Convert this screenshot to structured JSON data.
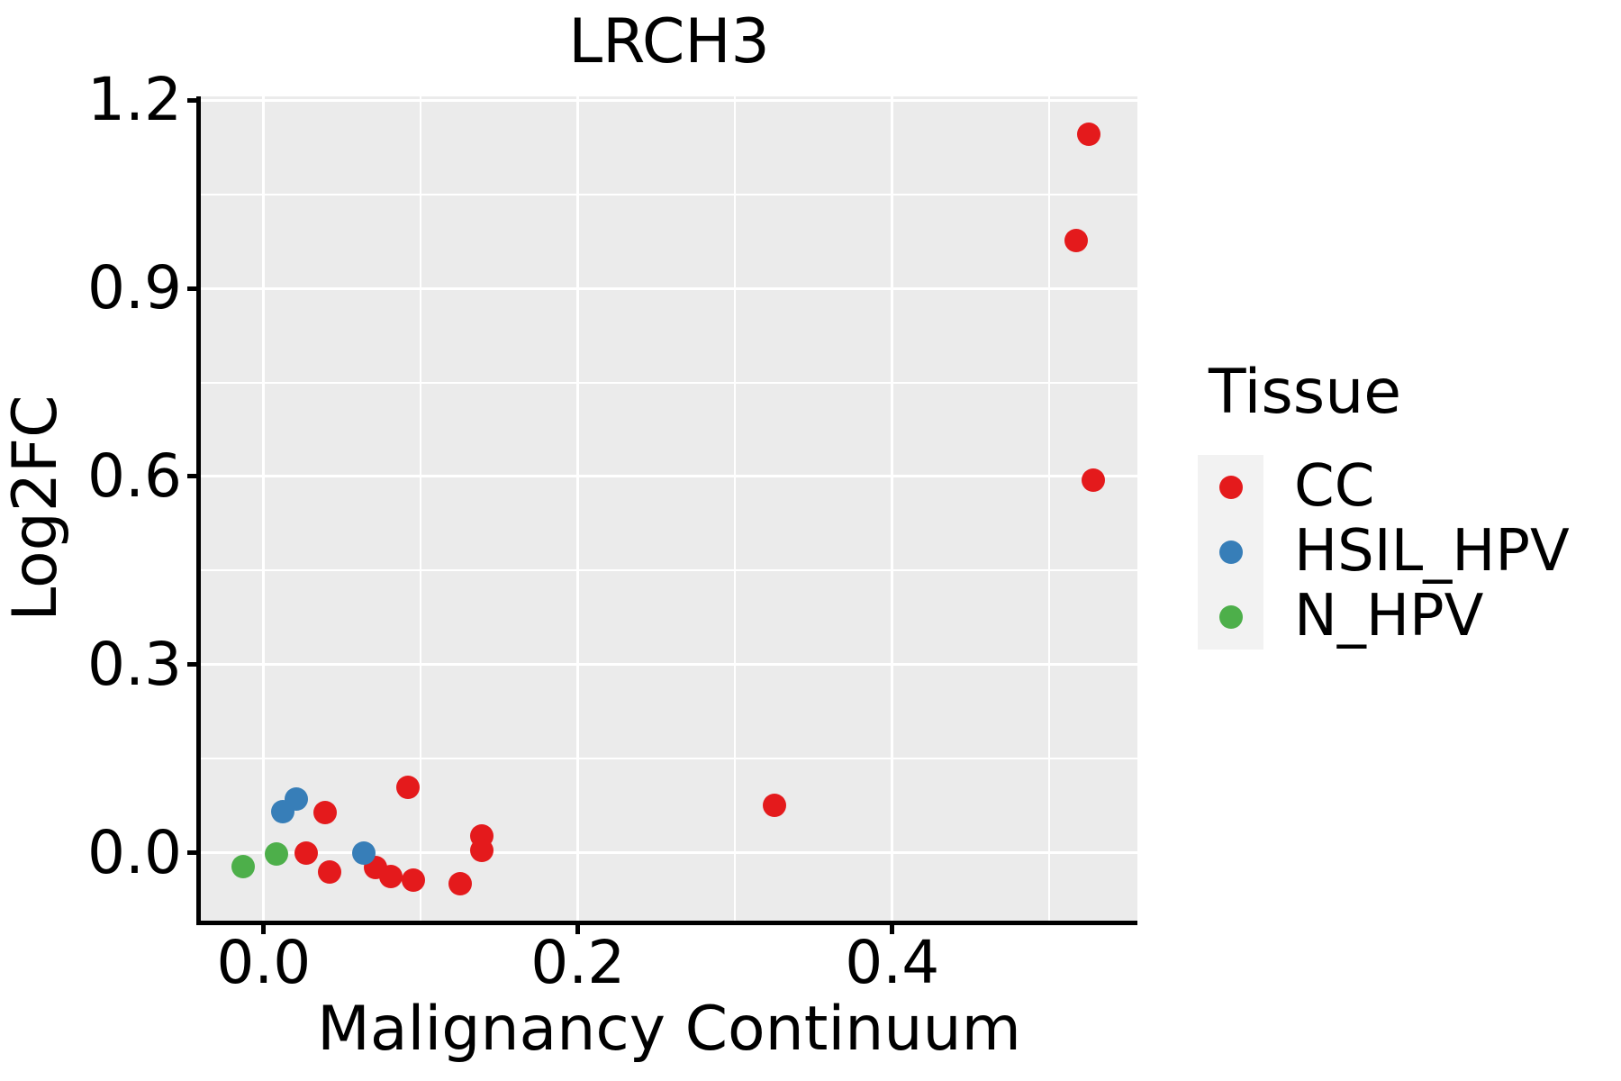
{
  "title": "LRCH3",
  "axes": {
    "x_label": "Malignancy Continuum",
    "y_label": "Log2FC"
  },
  "legend": {
    "title": "Tissue",
    "entries": [
      {
        "label": "CC",
        "color": "#E41A1C"
      },
      {
        "label": "HSIL_HPV",
        "color": "#377EB8"
      },
      {
        "label": "N_HPV",
        "color": "#4DAF4A"
      }
    ]
  },
  "colors": {
    "panel_background": "#EBEBEB",
    "gridline": "#FFFFFF",
    "legend_key_background": "#F2F2F2",
    "axis": "#000000",
    "cc_red": "#E41A1C",
    "hsil_hpv_blue": "#377EB8",
    "n_hpv_green": "#4DAF4A"
  },
  "chart_data": {
    "type": "scatter",
    "title": "LRCH3",
    "xlabel": "Malignancy Continuum",
    "ylabel": "Log2FC",
    "xlim": [
      -0.04,
      0.556
    ],
    "ylim": [
      -0.108,
      1.206
    ],
    "grid": true,
    "legend_position": "right",
    "x_ticks": [
      {
        "value": 0.0,
        "label": "0.0"
      },
      {
        "value": 0.2,
        "label": "0.2"
      },
      {
        "value": 0.4,
        "label": "0.4"
      }
    ],
    "y_ticks": [
      {
        "value": 0.0,
        "label": "0.0"
      },
      {
        "value": 0.3,
        "label": "0.3"
      },
      {
        "value": 0.6,
        "label": "0.6"
      },
      {
        "value": 0.9,
        "label": "0.9"
      },
      {
        "value": 1.2,
        "label": "1.2"
      }
    ],
    "x_minor_breaks": [
      0.1,
      0.3,
      0.5
    ],
    "y_minor_breaks": [
      0.15,
      0.45,
      0.75,
      1.05
    ],
    "series": [
      {
        "name": "CC",
        "color": "#E41A1C",
        "points": [
          [
            0.027,
            -0.001
          ],
          [
            0.039,
            0.065
          ],
          [
            0.042,
            -0.03
          ],
          [
            0.071,
            -0.023
          ],
          [
            0.081,
            -0.037
          ],
          [
            0.092,
            0.105
          ],
          [
            0.095,
            -0.044
          ],
          [
            0.125,
            -0.049
          ],
          [
            0.139,
            0.027
          ],
          [
            0.139,
            0.004
          ],
          [
            0.325,
            0.076
          ],
          [
            0.517,
            0.976
          ],
          [
            0.525,
            1.145
          ],
          [
            0.528,
            0.594
          ]
        ]
      },
      {
        "name": "HSIL_HPV",
        "color": "#377EB8",
        "points": [
          [
            0.012,
            0.066
          ],
          [
            0.021,
            0.086
          ],
          [
            0.064,
            -0.001
          ]
        ]
      },
      {
        "name": "N_HPV",
        "color": "#4DAF4A",
        "points": [
          [
            -0.013,
            -0.022
          ],
          [
            0.008,
            -0.002
          ]
        ]
      }
    ]
  }
}
